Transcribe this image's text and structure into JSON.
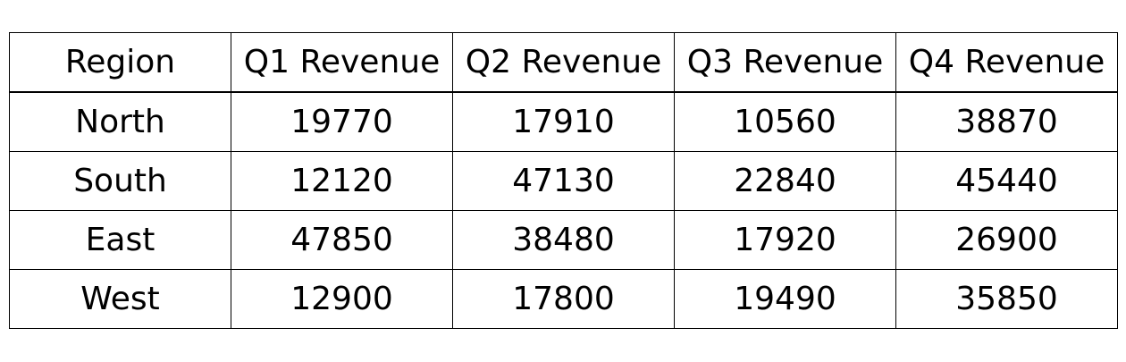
{
  "chart_data": {
    "type": "table",
    "columns": [
      "Region",
      "Q1 Revenue",
      "Q2 Revenue",
      "Q3 Revenue",
      "Q4 Revenue"
    ],
    "rows": [
      [
        "North",
        "19770",
        "17910",
        "10560",
        "38870"
      ],
      [
        "South",
        "12120",
        "47130",
        "22840",
        "45440"
      ],
      [
        "East",
        "47850",
        "38480",
        "17920",
        "26900"
      ],
      [
        "West",
        "12900",
        "17800",
        "19490",
        "35850"
      ]
    ]
  }
}
